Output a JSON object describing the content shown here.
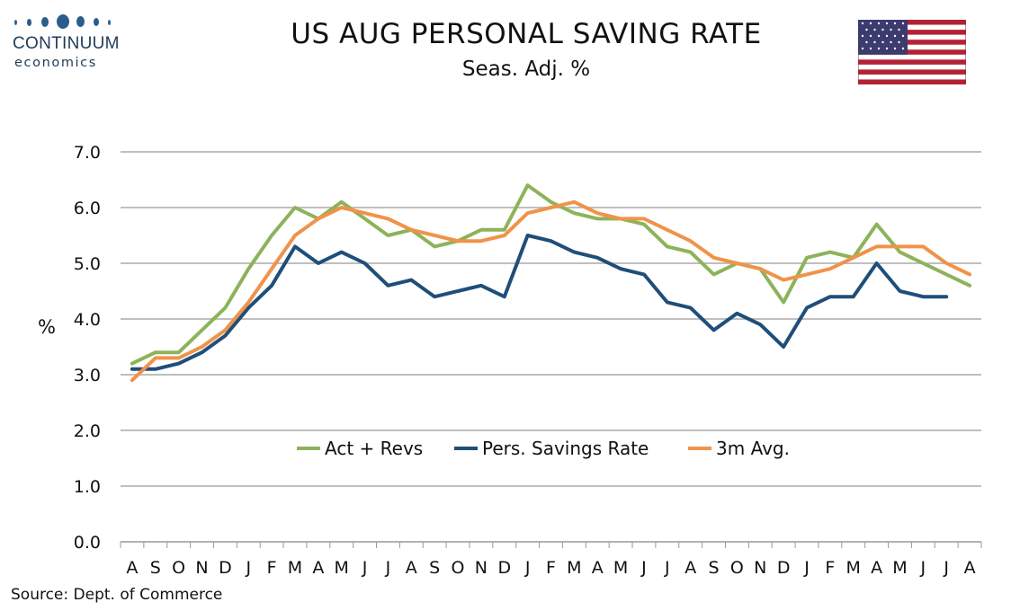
{
  "header": {
    "logo_name": "CONTINUUM",
    "logo_sub": "economics",
    "title": "US AUG PERSONAL SAVING RATE",
    "subtitle": "Seas. Adj. %"
  },
  "footer": {
    "source": "Source: Dept. of Commerce"
  },
  "colors": {
    "green": "#8db35a",
    "navy": "#1f4e79",
    "orange": "#f0934a",
    "grid": "#bfbfbf"
  },
  "icons": {
    "flag": "us-flag-icon",
    "logo_mark": "continuum-dots-icon"
  },
  "chart_data": {
    "type": "line",
    "ylabel": "%",
    "ylim": [
      0,
      7
    ],
    "yticks": [
      "0.0",
      "1.0",
      "2.0",
      "3.0",
      "4.0",
      "5.0",
      "6.0",
      "7.0"
    ],
    "grid": true,
    "legend_position": "inside-lower-center",
    "categories": [
      "A",
      "S",
      "O",
      "N",
      "D",
      "J",
      "F",
      "M",
      "A",
      "M",
      "J",
      "J",
      "A",
      "S",
      "O",
      "N",
      "D",
      "J",
      "F",
      "M",
      "A",
      "M",
      "J",
      "J",
      "A",
      "S",
      "O",
      "N",
      "D",
      "J",
      "F",
      "M",
      "A",
      "M",
      "J",
      "J",
      "A"
    ],
    "series": [
      {
        "name": "Act + Revs",
        "color": "#8db35a",
        "values": [
          3.2,
          3.4,
          3.4,
          3.8,
          4.2,
          4.9,
          5.5,
          6.0,
          5.8,
          6.1,
          5.8,
          5.5,
          5.6,
          5.3,
          5.4,
          5.6,
          5.6,
          6.4,
          6.1,
          5.9,
          5.8,
          5.8,
          5.7,
          5.3,
          5.2,
          4.8,
          5.0,
          4.9,
          4.3,
          5.1,
          5.2,
          5.1,
          5.7,
          5.2,
          5.0,
          4.8,
          4.6
        ]
      },
      {
        "name": "Pers. Savings Rate",
        "color": "#1f4e79",
        "values": [
          3.1,
          3.1,
          3.2,
          3.4,
          3.7,
          4.2,
          4.6,
          5.3,
          5.0,
          5.2,
          5.0,
          4.6,
          4.7,
          4.4,
          4.5,
          4.6,
          4.4,
          5.5,
          5.4,
          5.2,
          5.1,
          4.9,
          4.8,
          4.3,
          4.2,
          3.8,
          4.1,
          3.9,
          3.5,
          4.2,
          4.4,
          4.4,
          5.0,
          4.5,
          4.4,
          4.4,
          null
        ]
      },
      {
        "name": "3m Avg.",
        "color": "#f0934a",
        "values": [
          2.9,
          3.3,
          3.3,
          3.5,
          3.8,
          4.3,
          4.9,
          5.5,
          5.8,
          6.0,
          5.9,
          5.8,
          5.6,
          5.5,
          5.4,
          5.4,
          5.5,
          5.9,
          6.0,
          6.1,
          5.9,
          5.8,
          5.8,
          5.6,
          5.4,
          5.1,
          5.0,
          4.9,
          4.7,
          4.8,
          4.9,
          5.1,
          5.3,
          5.3,
          5.3,
          5.0,
          4.8
        ]
      }
    ]
  }
}
